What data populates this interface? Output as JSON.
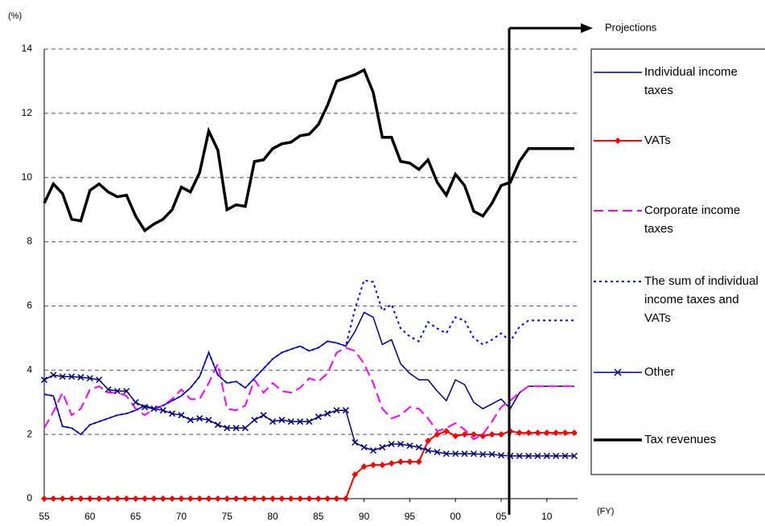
{
  "chart_data": {
    "type": "line",
    "y_unit": "(%)",
    "x_unit": "(FY)",
    "annotation": "Projections",
    "categories": [
      "55",
      null,
      null,
      null,
      null,
      "60",
      null,
      null,
      null,
      null,
      "65",
      null,
      null,
      null,
      null,
      "70",
      null,
      null,
      null,
      null,
      "75",
      null,
      null,
      null,
      null,
      "80",
      null,
      null,
      null,
      null,
      "85",
      null,
      null,
      null,
      null,
      "90",
      null,
      null,
      null,
      null,
      "95",
      null,
      null,
      null,
      null,
      "00",
      null,
      null,
      null,
      null,
      "05",
      null,
      null,
      null,
      null,
      "10",
      null,
      null,
      null
    ],
    "ylim": [
      0,
      14
    ],
    "yticks": [
      0,
      2,
      4,
      6,
      8,
      10,
      12,
      14
    ],
    "grid": true,
    "series": [
      {
        "name": "Individual income taxes",
        "color": "#000080",
        "style": "solid",
        "width": 1.5,
        "marker": "none",
        "values": [
          3.25,
          3.2,
          2.25,
          2.2,
          2.0,
          2.3,
          2.4,
          2.5,
          2.6,
          2.65,
          2.75,
          2.9,
          2.8,
          2.9,
          3.05,
          3.2,
          3.45,
          3.8,
          4.55,
          3.85,
          3.6,
          3.65,
          3.45,
          3.75,
          4.05,
          4.35,
          4.55,
          4.65,
          4.75,
          4.6,
          4.7,
          4.9,
          4.85,
          4.75,
          5.2,
          5.8,
          5.65,
          4.8,
          4.95,
          4.2,
          3.9,
          3.7,
          3.7,
          3.35,
          3.05,
          3.7,
          3.55,
          3.0,
          2.8,
          2.95,
          3.1,
          2.8,
          3.3,
          3.5,
          3.5,
          3.5,
          3.5,
          3.5,
          3.5
        ]
      },
      {
        "name": "VATs",
        "color": "#ff0000",
        "style": "solid",
        "width": 2,
        "marker": "diamond",
        "values": [
          0,
          0,
          0,
          0,
          0,
          0,
          0,
          0,
          0,
          0,
          0,
          0,
          0,
          0,
          0,
          0,
          0,
          0,
          0,
          0,
          0,
          0,
          0,
          0,
          0,
          0,
          0,
          0,
          0,
          0,
          0,
          0,
          0,
          0,
          0.75,
          1.0,
          1.05,
          1.05,
          1.1,
          1.15,
          1.15,
          1.15,
          1.8,
          2.0,
          2.1,
          1.95,
          2.0,
          2.0,
          1.95,
          2.0,
          2.0,
          2.1,
          2.05,
          2.05,
          2.05,
          2.05,
          2.05,
          2.05,
          2.05
        ]
      },
      {
        "name": "Corporate income taxes",
        "color": "#ff00ff",
        "style": "dashed",
        "width": 2,
        "marker": "none",
        "values": [
          2.2,
          2.7,
          3.3,
          2.6,
          2.8,
          3.4,
          3.5,
          3.3,
          3.3,
          3.2,
          2.8,
          2.6,
          2.8,
          2.9,
          3.1,
          3.4,
          3.1,
          3.1,
          3.6,
          4.2,
          2.8,
          2.75,
          2.9,
          3.7,
          3.3,
          3.6,
          3.35,
          3.3,
          3.45,
          3.75,
          3.65,
          3.9,
          4.55,
          4.7,
          4.6,
          4.2,
          3.6,
          2.8,
          2.5,
          2.6,
          2.85,
          2.8,
          2.5,
          2.1,
          2.2,
          2.35,
          2.15,
          1.85,
          2.0,
          2.4,
          2.85,
          3.05,
          3.3,
          3.5,
          3.5,
          3.5,
          3.5,
          3.5,
          3.5
        ]
      },
      {
        "name": "The sum of individual income taxes and VATs",
        "color": "#0000ff",
        "style": "dotted",
        "width": 2,
        "marker": "none",
        "values": [
          3.25,
          3.2,
          2.25,
          2.2,
          2.0,
          2.3,
          2.4,
          2.5,
          2.6,
          2.65,
          2.75,
          2.9,
          2.8,
          2.9,
          3.05,
          3.2,
          3.45,
          3.8,
          4.55,
          3.85,
          3.6,
          3.65,
          3.45,
          3.75,
          4.05,
          4.35,
          4.55,
          4.65,
          4.75,
          4.6,
          4.7,
          4.9,
          4.85,
          4.75,
          5.9,
          6.8,
          6.75,
          5.85,
          6.05,
          5.3,
          5.05,
          4.9,
          5.5,
          5.3,
          5.15,
          5.65,
          5.55,
          5.0,
          4.8,
          4.95,
          5.15,
          4.9,
          5.35,
          5.55,
          5.55,
          5.55,
          5.55,
          5.55,
          5.55
        ]
      },
      {
        "name": "Other",
        "color": "#000080",
        "style": "solid",
        "width": 1.5,
        "marker": "x",
        "values": [
          3.7,
          3.85,
          3.8,
          3.8,
          3.78,
          3.75,
          3.7,
          3.4,
          3.35,
          3.35,
          3.0,
          2.85,
          2.8,
          2.75,
          2.65,
          2.6,
          2.45,
          2.5,
          2.45,
          2.3,
          2.2,
          2.2,
          2.2,
          2.45,
          2.6,
          2.4,
          2.45,
          2.4,
          2.4,
          2.4,
          2.55,
          2.65,
          2.75,
          2.75,
          1.75,
          1.6,
          1.5,
          1.6,
          1.7,
          1.7,
          1.65,
          1.6,
          1.5,
          1.45,
          1.4,
          1.4,
          1.4,
          1.4,
          1.38,
          1.38,
          1.35,
          1.33,
          1.33,
          1.33,
          1.33,
          1.33,
          1.33,
          1.33,
          1.33
        ]
      },
      {
        "name": "Tax revenues",
        "color": "#000000",
        "style": "solid",
        "width": 3.5,
        "marker": "none",
        "values": [
          9.2,
          9.8,
          9.5,
          8.7,
          8.65,
          9.6,
          9.8,
          9.55,
          9.4,
          9.45,
          8.8,
          8.35,
          8.55,
          8.7,
          9.0,
          9.7,
          9.55,
          10.15,
          11.45,
          10.85,
          9.0,
          9.15,
          9.1,
          10.5,
          10.55,
          10.9,
          11.05,
          11.1,
          11.3,
          11.35,
          11.65,
          12.25,
          13.0,
          13.1,
          13.2,
          13.35,
          12.65,
          11.25,
          11.25,
          10.5,
          10.45,
          10.25,
          10.55,
          9.85,
          9.45,
          10.1,
          9.75,
          8.95,
          8.8,
          9.2,
          9.75,
          9.85,
          10.5,
          10.9,
          10.9,
          10.9,
          10.9,
          10.9,
          10.9
        ]
      }
    ]
  }
}
